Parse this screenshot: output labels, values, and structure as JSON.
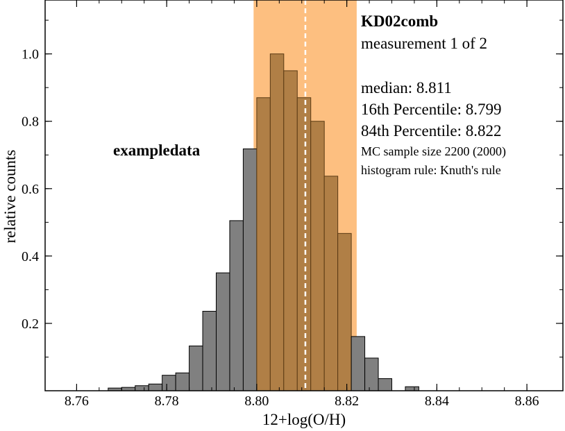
{
  "chart_data": {
    "type": "bar",
    "title": "KD02comb",
    "subtitle": "measurement 1 of 2",
    "dataset_label": "exampledata",
    "xlabel": "12+log(O/H)",
    "ylabel": "relative counts",
    "xlim": [
      8.753,
      8.868
    ],
    "ylim": [
      0,
      1.16
    ],
    "xticks": [
      "8.76",
      "8.78",
      "8.80",
      "8.82",
      "8.84",
      "8.86"
    ],
    "yticks": [
      "0.2",
      "0.4",
      "0.6",
      "0.8",
      "1.0"
    ],
    "bin_width": 0.003,
    "bins": [
      {
        "left": 8.767,
        "value": 0.008
      },
      {
        "left": 8.77,
        "value": 0.01
      },
      {
        "left": 8.773,
        "value": 0.015
      },
      {
        "left": 8.776,
        "value": 0.02
      },
      {
        "left": 8.779,
        "value": 0.046
      },
      {
        "left": 8.782,
        "value": 0.053
      },
      {
        "left": 8.785,
        "value": 0.133
      },
      {
        "left": 8.788,
        "value": 0.236
      },
      {
        "left": 8.791,
        "value": 0.35
      },
      {
        "left": 8.794,
        "value": 0.505
      },
      {
        "left": 8.797,
        "value": 0.718
      },
      {
        "left": 8.8,
        "value": 0.87
      },
      {
        "left": 8.803,
        "value": 1.0
      },
      {
        "left": 8.806,
        "value": 0.95
      },
      {
        "left": 8.809,
        "value": 0.87
      },
      {
        "left": 8.812,
        "value": 0.8
      },
      {
        "left": 8.815,
        "value": 0.637
      },
      {
        "left": 8.818,
        "value": 0.467
      },
      {
        "left": 8.821,
        "value": 0.161
      },
      {
        "left": 8.824,
        "value": 0.097
      },
      {
        "left": 8.827,
        "value": 0.036
      },
      {
        "left": 8.833,
        "value": 0.012
      }
    ],
    "shaded_band": {
      "low": 8.7993,
      "high": 8.8222,
      "color": "#fdbf80"
    },
    "median_line": {
      "x": 8.8108,
      "color": "#ffffff"
    },
    "bar_color": "#808080",
    "bar_highlight_color": "#b07f46",
    "stats": {
      "median": "median: 8.811",
      "p16": "16th Percentile: 8.799",
      "p84": "84th Percentile: 8.822",
      "mc": "MC sample size 2200 (2000)",
      "rule": "histogram rule: Knuth's rule"
    }
  }
}
